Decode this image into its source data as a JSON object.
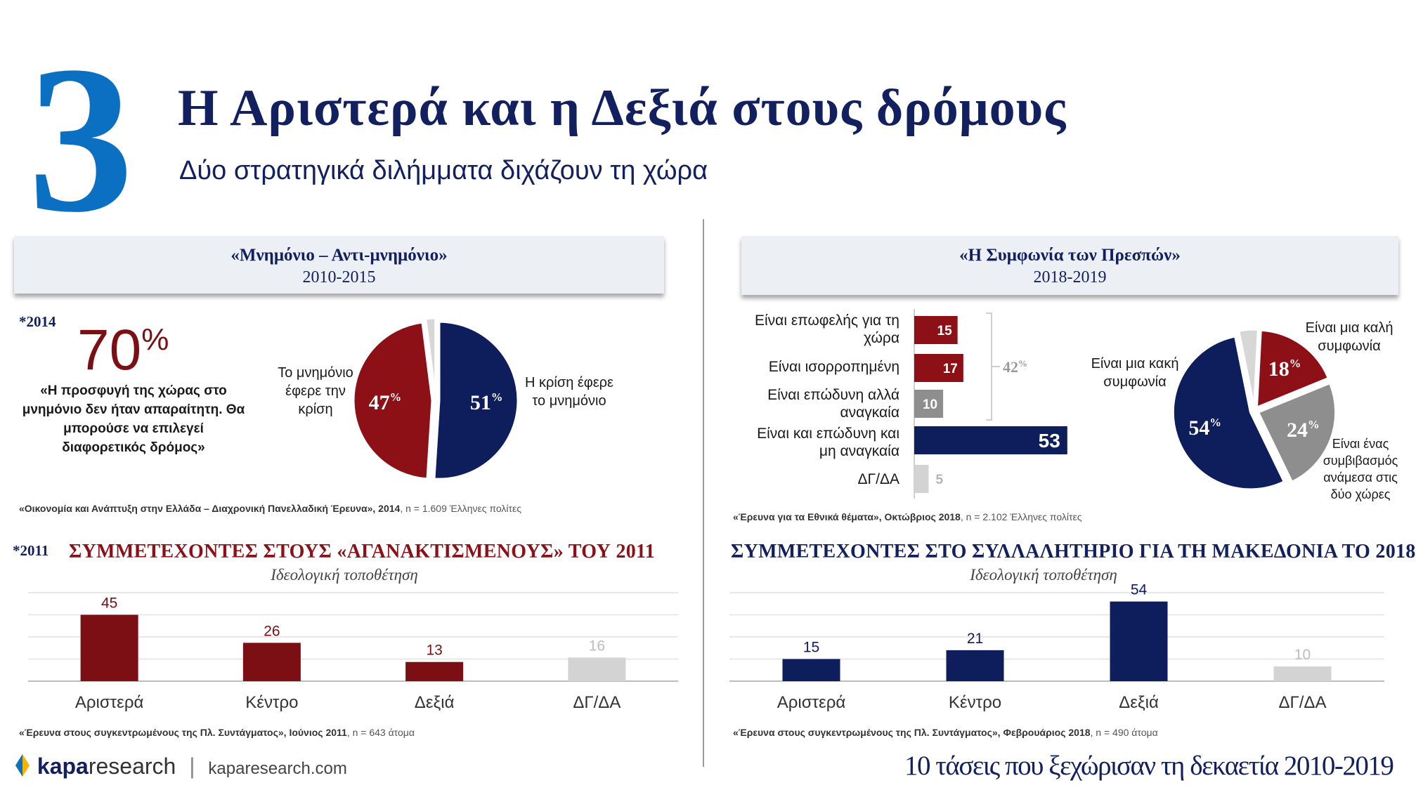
{
  "header": {
    "number": "3",
    "title": "Η Αριστερά και η Δεξιά στους δρόμους",
    "subtitle": "Δύο στρατηγικά διλήμματα διχάζουν τη χώρα"
  },
  "left_panel": {
    "box_title": "«Μνημόνιο – Αντι-μνημόνιο»",
    "box_years": "2010-2015",
    "year_tag": "*2014",
    "big_stat": "70",
    "big_stat_unit": "%",
    "quote": "«Η προσφυγή της χώρας στο μνημόνιο δεν ήταν απαραίτητη. Θα μπορούσε να επιλεγεί διαφορετικός δρόμος»",
    "source_bold": "«Οικονομία και Ανάπτυξη στην Ελλάδα – Διαχρονική Πανελλαδική Έρευνα», 2014",
    "source_rest": ", n = 1.609 Έλληνες πολίτες"
  },
  "right_panel": {
    "box_title": "«Η Συμφωνία των Πρεσπών»",
    "box_years": "2018-2019",
    "bracket_label": "42%",
    "source_bold": "«Έρευνα για τα Εθνικά θέματα», Οκτώβριος 2018",
    "source_rest": ", n = 2.102 Έλληνες πολίτες"
  },
  "bottom_left": {
    "year_tag": "*2011",
    "title": "ΣΥΜΜΕΤΕΧΟΝΤΕΣ ΣΤΟΥΣ «ΑΓΑΝΑΚΤΙΣΜΕΝΟΥΣ» ΤΟΥ 2011",
    "subtitle": "Ιδεολογική τοποθέτηση",
    "source_bold": "«Έρευνα στους συγκεντρωμένους της Πλ. Συντάγματος», Ιούνιος 2011",
    "source_rest": ", n = 643 άτομα"
  },
  "bottom_right": {
    "title": "ΣΥΜΜΕΤΕΧΟΝΤΕΣ ΣΤΟ ΣΥΛΛΑΛΗΤΗΡΙΟ ΓΙΑ ΤΗ ΜΑΚΕΔΟΝΙΑ ΤΟ 2018",
    "subtitle": "Ιδεολογική τοποθέτηση",
    "source_bold": "«Έρευνα στους συγκεντρωμένους της Πλ. Συντάγματος», Φεβρουάριος 2018",
    "source_rest": ", n = 490 άτομα"
  },
  "footer": {
    "brand_bold": "kapa",
    "brand_light": "research",
    "separator": "|",
    "url": "kaparesearch.com",
    "tagline": "10 τάσεις που ξεχώρισαν τη δεκαετία 2010-2019"
  },
  "chart_data": [
    {
      "id": "memorandum-pie",
      "type": "pie",
      "title": "«Μνημόνιο – Αντι-μνημόνιο» 2010-2015",
      "slices": [
        {
          "label": "Η κρίση έφερε το μνημόνιο",
          "value": 51,
          "display": "51",
          "color": "#0e1d5c"
        },
        {
          "label": "Το μνημόνιο έφερε την κρίση",
          "value": 47,
          "display": "47",
          "color": "#8c1016"
        },
        {
          "label": "",
          "value": 2,
          "display": "",
          "color": "#d7d7d7"
        }
      ],
      "unit": "%"
    },
    {
      "id": "prespa-bar",
      "type": "bar",
      "orientation": "horizontal",
      "categories": [
        "Είναι επωφελής για τη χώρα",
        "Είναι ισορροπημένη",
        "Είναι επώδυνη αλλά αναγκαία",
        "Είναι και επώδυνη και μη αναγκαία",
        "ΔΓ/ΔΑ"
      ],
      "values": [
        15,
        17,
        10,
        53,
        5
      ],
      "colors": [
        "#8c1016",
        "#8c1016",
        "#8e8e8e",
        "#0e1d5c",
        "#d3d3d3"
      ],
      "xlim": [
        0,
        60
      ]
    },
    {
      "id": "prespa-pie",
      "type": "pie",
      "title": "«Η Συμφωνία των Πρεσπών» 2018-2019",
      "slices": [
        {
          "label": "Είναι μια καλή συμφωνία",
          "value": 18,
          "display": "18",
          "color": "#8c1016"
        },
        {
          "label": "Είναι ένας συμβιβασμός ανάμεσα στις δύο χώρες",
          "value": 24,
          "display": "24",
          "color": "#8e8e8e"
        },
        {
          "label": "Είναι μια κακή συμφωνία",
          "value": 54,
          "display": "54",
          "color": "#0e1d5c"
        },
        {
          "label": "",
          "value": 4,
          "display": "",
          "color": "#d7d7d7"
        }
      ],
      "unit": "%"
    },
    {
      "id": "indignados-bar",
      "type": "bar",
      "title": "ΣΥΜΜΕΤΕΧΟΝΤΕΣ ΣΤΟΥΣ «ΑΓΑΝΑΚΤΙΣΜΕΝΟΥΣ» ΤΟΥ 2011",
      "categories": [
        "Αριστερά",
        "Κέντρο",
        "Δεξιά",
        "ΔΓ/ΔΑ"
      ],
      "values": [
        45,
        26,
        13,
        16
      ],
      "colors": [
        "#7b0f14",
        "#7b0f14",
        "#7b0f14",
        "#d3d3d3"
      ],
      "label_colors": [
        "#7b0f14",
        "#7b0f14",
        "#7b0f14",
        "#bdbdbd"
      ],
      "ylim": [
        0,
        60
      ],
      "grid": true
    },
    {
      "id": "macedonia-bar",
      "type": "bar",
      "title": "ΣΥΜΜΕΤΕΧΟΝΤΕΣ ΣΤΟ ΣΥΛΛΑΛΗΤΗΡΙΟ ΓΙΑ ΤΗ ΜΑΚΕΔΟΝΙΑ ΤΟ 2018",
      "categories": [
        "Αριστερά",
        "Κέντρο",
        "Δεξιά",
        "ΔΓ/ΔΑ"
      ],
      "values": [
        15,
        21,
        54,
        10
      ],
      "colors": [
        "#0e1d5c",
        "#0e1d5c",
        "#0e1d5c",
        "#d3d3d3"
      ],
      "label_colors": [
        "#0e1d5c",
        "#0e1d5c",
        "#0e1d5c",
        "#bdbdbd"
      ],
      "ylim": [
        0,
        60
      ],
      "grid": true
    }
  ]
}
